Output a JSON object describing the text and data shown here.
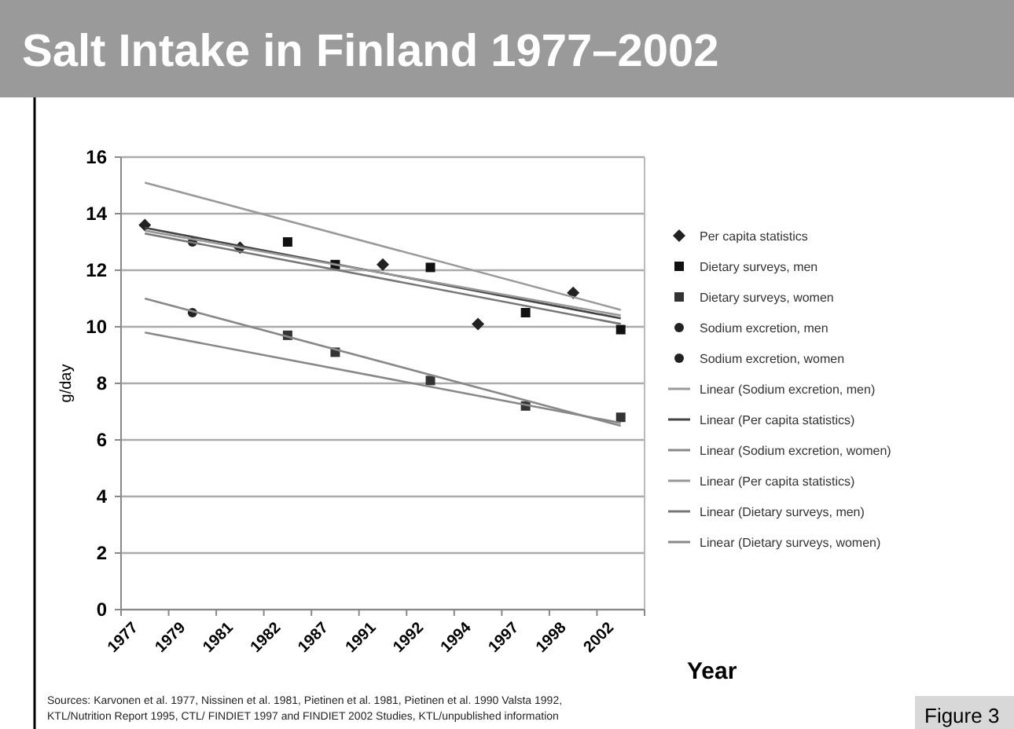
{
  "chart_data": {
    "type": "scatter",
    "title": "Salt Intake in Finland 1977–2002",
    "xlabel": "Year",
    "ylabel": "g/day",
    "categories": [
      "1977",
      "1979",
      "1981",
      "1982",
      "1987",
      "1991",
      "1992",
      "1994",
      "1997",
      "1998",
      "2002"
    ],
    "ylim": [
      0,
      16
    ],
    "yticks": [
      0,
      2,
      4,
      6,
      8,
      10,
      12,
      14,
      16
    ],
    "grid": "y",
    "legend": "right",
    "series": [
      {
        "name": "Per capita statistics",
        "marker": "diamond",
        "color": "#222222",
        "values": [
          13.6,
          null,
          12.8,
          null,
          null,
          12.2,
          null,
          10.1,
          null,
          11.2,
          null
        ]
      },
      {
        "name": "Dietary surveys, men",
        "marker": "square",
        "color": "#111111",
        "values": [
          null,
          null,
          null,
          13.0,
          12.2,
          null,
          12.1,
          null,
          10.5,
          null,
          9.9
        ]
      },
      {
        "name": "Dietary surveys, women",
        "marker": "square",
        "color": "#333333",
        "values": [
          null,
          null,
          null,
          9.7,
          9.1,
          null,
          8.1,
          null,
          7.2,
          null,
          6.8
        ]
      },
      {
        "name": "Sodium excretion, men",
        "marker": "circle",
        "color": "#222222",
        "values": [
          null,
          13.0,
          null,
          null,
          null,
          null,
          null,
          null,
          null,
          null,
          null
        ]
      },
      {
        "name": "Sodium excretion, women",
        "marker": "circle",
        "color": "#222222",
        "values": [
          null,
          10.5,
          null,
          null,
          null,
          null,
          null,
          null,
          null,
          null,
          null
        ]
      },
      {
        "name": "Linear (Sodium excretion, men)",
        "type": "line",
        "marker": "none",
        "line_style": "solid",
        "color": "#999999",
        "values": [
          15.1,
          null,
          null,
          null,
          null,
          null,
          null,
          null,
          null,
          null,
          10.6
        ]
      },
      {
        "name": "Linear (Per capita statistics)",
        "type": "line",
        "marker": "none",
        "line_style": "solid",
        "color": "#444444",
        "values": [
          13.5,
          null,
          null,
          null,
          null,
          null,
          null,
          null,
          null,
          null,
          10.3
        ]
      },
      {
        "name": "Linear (Sodium excretion, women)",
        "type": "line",
        "marker": "none",
        "line_style": "solid",
        "color": "#888888",
        "values": [
          9.8,
          null,
          null,
          null,
          null,
          null,
          null,
          null,
          null,
          null,
          6.6
        ]
      },
      {
        "name": "Linear (Per capita statistics)",
        "type": "line",
        "marker": "none",
        "line_style": "solid",
        "color": "#999999",
        "values": [
          13.4,
          null,
          null,
          null,
          null,
          null,
          null,
          null,
          null,
          null,
          10.4
        ]
      },
      {
        "name": "Linear (Dietary surveys, men)",
        "type": "line",
        "marker": "none",
        "line_style": "solid",
        "color": "#777777",
        "values": [
          13.3,
          null,
          null,
          null,
          null,
          null,
          null,
          null,
          null,
          null,
          10.1
        ]
      },
      {
        "name": "Linear (Dietary surveys, women)",
        "type": "line",
        "marker": "none",
        "line_style": "solid",
        "color": "#888888",
        "values": [
          11.0,
          null,
          null,
          null,
          null,
          null,
          null,
          null,
          null,
          null,
          6.5
        ]
      }
    ],
    "annotations": [
      "Sources: Karvonen et al. 1977, Nissinen et al. 1981, Pietinen et al. 1981, Pietinen et al. 1990 Valsta 1992,",
      "KTL/Nutrition Report 1995, CTL/ FINDIET 1997 and FINDIET 2002 Studies, KTL/unpublished information",
      "Figure 3"
    ]
  }
}
